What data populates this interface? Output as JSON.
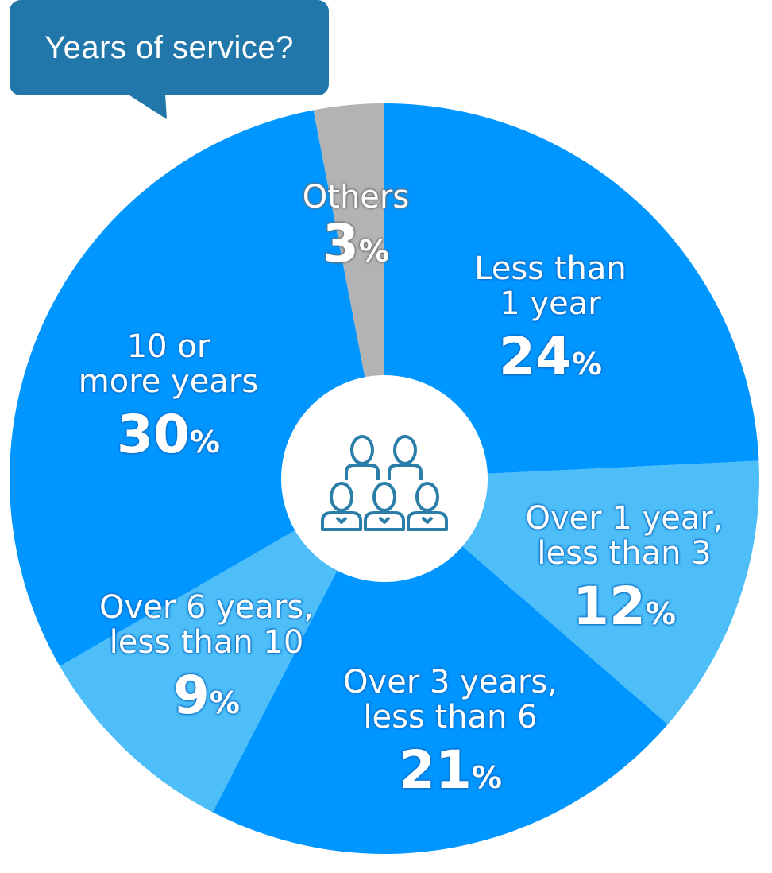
{
  "header": {
    "question": "Years of service?"
  },
  "colors": {
    "dark_blue": "#0096ff",
    "light_blue": "#4dbef8",
    "gray": "#b3b3b3",
    "callout": "#2277aa",
    "icon": "#2a7ea8"
  },
  "center_icon": "people-group-icon",
  "chart_data": {
    "type": "pie",
    "title": "Years of service?",
    "unit": "%",
    "slices": [
      {
        "label": "Less than 1 year",
        "value": 24,
        "color": "#0096ff"
      },
      {
        "label": "Over 1 year, less than 3",
        "value": 12,
        "color": "#4dbef8"
      },
      {
        "label": "Over 3 years, less than 6",
        "value": 21,
        "color": "#0096ff"
      },
      {
        "label": "Over 6 years, less than 10",
        "value": 9,
        "color": "#4dbef8"
      },
      {
        "label": "10 or more years",
        "value": 30,
        "color": "#0096ff"
      },
      {
        "label": "Others",
        "value": 3,
        "color": "#b3b3b3"
      }
    ],
    "labels": [
      {
        "lines": [
          "Less than",
          "1 year"
        ],
        "value": "24",
        "unit": "%"
      },
      {
        "lines": [
          "Over 1 year,",
          "less than 3"
        ],
        "value": "12",
        "unit": "%"
      },
      {
        "lines": [
          "Over 3 years,",
          "less than 6"
        ],
        "value": "21",
        "unit": "%"
      },
      {
        "lines": [
          "Over 6 years,",
          "less than 10"
        ],
        "value": "9",
        "unit": "%"
      },
      {
        "lines": [
          "10 or",
          "more years"
        ],
        "value": "30",
        "unit": "%"
      },
      {
        "lines": [
          "Others"
        ],
        "value": "3",
        "unit": "%"
      }
    ]
  }
}
